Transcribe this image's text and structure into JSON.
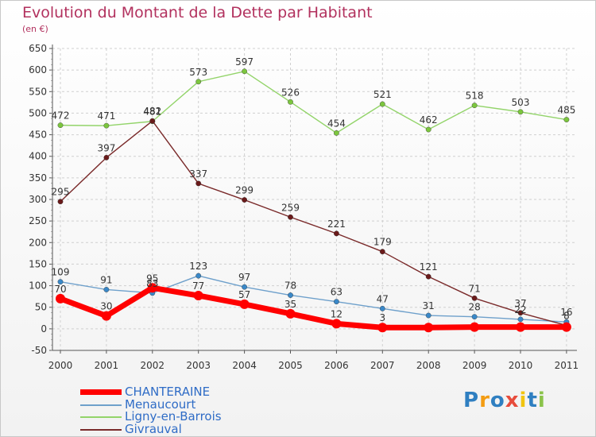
{
  "chart_data": {
    "type": "line",
    "title": "Evolution du Montant de la Dette par Habitant",
    "subtitle": "(en €)",
    "x": [
      "2000",
      "2001",
      "2002",
      "2003",
      "2004",
      "2005",
      "2006",
      "2007",
      "2008",
      "2009",
      "2010",
      "2011"
    ],
    "ylim": [
      -50,
      650
    ],
    "yticks": [
      -50,
      0,
      50,
      100,
      150,
      200,
      250,
      300,
      350,
      400,
      450,
      500,
      550,
      600,
      650
    ],
    "grid": true,
    "legend_position": "bottom-left",
    "series": [
      {
        "name": "Menaucourt",
        "color": "#6ea0cb",
        "marker": "#3a88c8",
        "values": [
          109,
          91,
          83,
          123,
          97,
          78,
          63,
          47,
          31,
          28,
          22,
          16
        ]
      },
      {
        "name": "Ligny-en-Barrois",
        "color": "#93d46a",
        "marker": "#7cc63e",
        "values": [
          472,
          471,
          481,
          573,
          597,
          526,
          454,
          521,
          462,
          518,
          503,
          485
        ]
      },
      {
        "name": "Givrauval",
        "color": "#7a2a2a",
        "marker": "#6a1a1a",
        "values": [
          295,
          397,
          482,
          337,
          299,
          259,
          221,
          179,
          121,
          71,
          37,
          8
        ]
      },
      {
        "name": "CHANTERAINE",
        "color": "#ff0000",
        "marker": "#ff0000",
        "values": [
          70,
          30,
          95,
          77,
          57,
          35,
          12,
          3,
          3,
          4,
          4,
          4
        ],
        "labels": [
          "70",
          "30",
          "95",
          "77",
          "57",
          "35",
          "12",
          "3",
          "",
          "",
          "",
          ""
        ]
      }
    ]
  },
  "legend": [
    {
      "name": "CHANTERAINE",
      "color": "#ff0000"
    },
    {
      "name": "Menaucourt",
      "color": "#6ea0cb"
    },
    {
      "name": "Ligny-en-Barrois",
      "color": "#93d46a"
    },
    {
      "name": "Givrauval",
      "color": "#7a2a2a"
    }
  ],
  "brand": {
    "letters": [
      "P",
      "r",
      "o",
      "x",
      "i",
      "t",
      "i"
    ],
    "colors": [
      "#2f7fc1",
      "#f39c12",
      "#2f7fc1",
      "#e74c3c",
      "#f1c40f",
      "#2f7fc1",
      "#8bc34a"
    ]
  }
}
